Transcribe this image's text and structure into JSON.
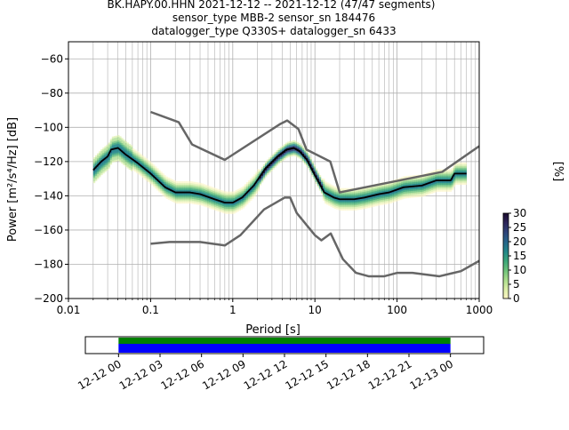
{
  "header": {
    "line1": "BK.HAPY.00.HHN   2021-12-12 -- 2021-12-12  (47/47 segments)",
    "line2": "sensor_type MBB-2 sensor_sn 184476",
    "line3": "datalogger_type Q330S+ datalogger_sn 6433"
  },
  "colors": {
    "median": "#000000",
    "noise_models": "#666666",
    "coverage_top": "#008000",
    "coverage_bottom": "#0000ff",
    "grid": "#b0b0b0"
  },
  "chart_data": {
    "type": "heatmap",
    "xlabel": "Period [s]",
    "ylabel": "Power [m²/s⁴/Hz] [dB]",
    "x_scale": "log",
    "xlim": [
      0.01,
      1000
    ],
    "ylim": [
      -200,
      -50
    ],
    "x_ticks": [
      {
        "value": 0.01,
        "label": "0.01"
      },
      {
        "value": 0.1,
        "label": "0.1"
      },
      {
        "value": 1,
        "label": "1"
      },
      {
        "value": 10,
        "label": "10"
      },
      {
        "value": 100,
        "label": "100"
      },
      {
        "value": 1000,
        "label": "1000"
      }
    ],
    "y_ticks": [
      -60,
      -80,
      -100,
      -120,
      -140,
      -160,
      -180,
      -200
    ],
    "grid": true,
    "colorbar": {
      "label": "[%]",
      "ticks": [
        0,
        5,
        10,
        15,
        20,
        25,
        30
      ],
      "range": [
        0,
        30
      ]
    },
    "median": [
      [
        0.02,
        -125
      ],
      [
        0.025,
        -120
      ],
      [
        0.03,
        -117
      ],
      [
        0.033,
        -113
      ],
      [
        0.04,
        -112
      ],
      [
        0.05,
        -116
      ],
      [
        0.07,
        -121
      ],
      [
        0.1,
        -127
      ],
      [
        0.15,
        -135
      ],
      [
        0.2,
        -138
      ],
      [
        0.3,
        -138
      ],
      [
        0.4,
        -139
      ],
      [
        0.6,
        -142
      ],
      [
        0.8,
        -144
      ],
      [
        1.0,
        -144
      ],
      [
        1.3,
        -141
      ],
      [
        1.8,
        -134
      ],
      [
        2.5,
        -124
      ],
      [
        3.5,
        -117
      ],
      [
        4.5,
        -113
      ],
      [
        5.5,
        -112
      ],
      [
        6.5,
        -114
      ],
      [
        8,
        -119
      ],
      [
        10,
        -128
      ],
      [
        13,
        -138
      ],
      [
        17,
        -141
      ],
      [
        20,
        -142
      ],
      [
        30,
        -142
      ],
      [
        40,
        -141
      ],
      [
        60,
        -139
      ],
      [
        80,
        -138
      ],
      [
        120,
        -135
      ],
      [
        200,
        -134
      ],
      [
        300,
        -131
      ],
      [
        450,
        -131
      ],
      [
        500,
        -127
      ],
      [
        700,
        -127
      ]
    ],
    "high_noise_model": [
      [
        0.1,
        -91
      ],
      [
        0.22,
        -97
      ],
      [
        0.32,
        -110
      ],
      [
        0.8,
        -119
      ],
      [
        3.8,
        -98
      ],
      [
        4.6,
        -96
      ],
      [
        6.3,
        -101
      ],
      [
        7.9,
        -113
      ],
      [
        15.4,
        -120
      ],
      [
        20,
        -138
      ],
      [
        354.8,
        -126
      ],
      [
        1000,
        -111
      ]
    ],
    "low_noise_model": [
      [
        0.1,
        -168
      ],
      [
        0.17,
        -167
      ],
      [
        0.4,
        -167
      ],
      [
        0.8,
        -169
      ],
      [
        1.24,
        -163
      ],
      [
        2.4,
        -148
      ],
      [
        4.3,
        -141
      ],
      [
        5,
        -141
      ],
      [
        6,
        -150
      ],
      [
        10,
        -163
      ],
      [
        12,
        -166
      ],
      [
        15.6,
        -162
      ],
      [
        21.9,
        -177
      ],
      [
        31.6,
        -185
      ],
      [
        45,
        -187
      ],
      [
        70,
        -187
      ],
      [
        101,
        -185
      ],
      [
        154,
        -185
      ],
      [
        328,
        -187
      ],
      [
        600,
        -184
      ],
      [
        1000,
        -178
      ]
    ],
    "timeline": {
      "tick_labels": [
        "12-12 00",
        "12-12 03",
        "12-12 06",
        "12-12 09",
        "12-12 12",
        "12-12 15",
        "12-12 18",
        "12-12 21",
        "12-13 00"
      ],
      "range_hours": [
        -2.4,
        26.4
      ],
      "coverage_hours": [
        0,
        24
      ]
    }
  }
}
